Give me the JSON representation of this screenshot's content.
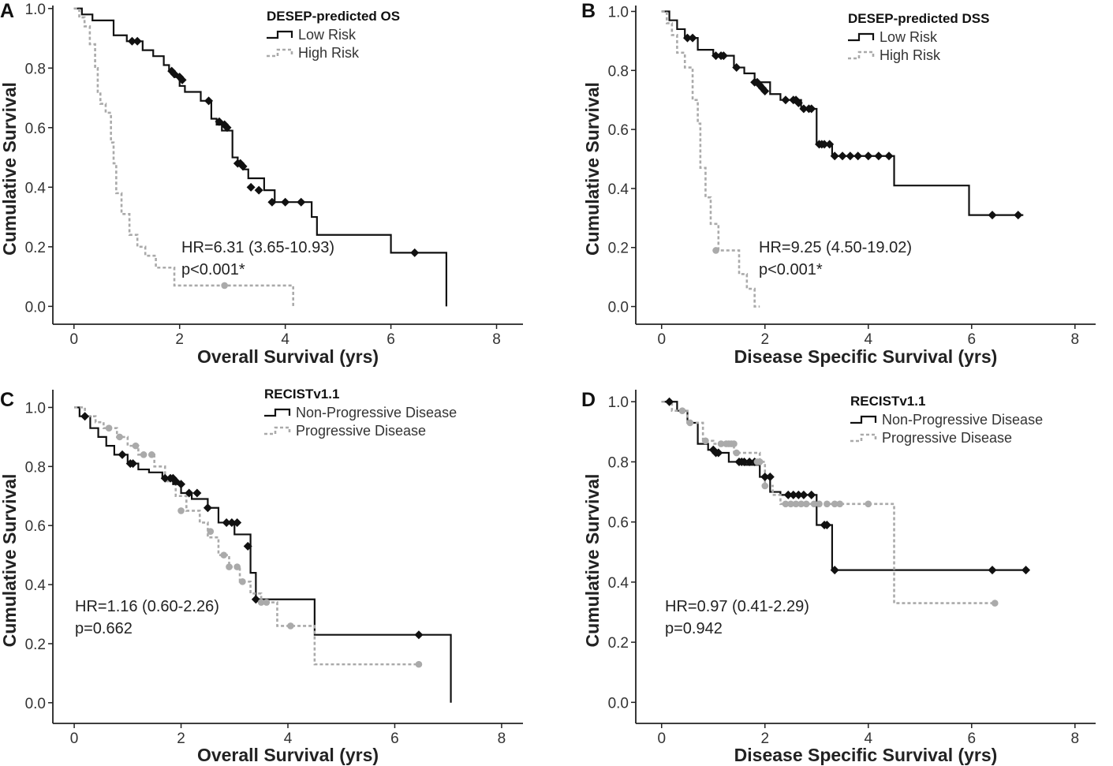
{
  "figure": {
    "colors": {
      "low": "#111111",
      "high": "#aaaaaa"
    }
  },
  "chart_data": [
    {
      "type": "line",
      "label": "A",
      "title": "DESEP-predicted OS",
      "xlabel": "Overall Survival (yrs)",
      "ylabel": "Cumulative Survival",
      "xlim": [
        -0.4,
        8.5
      ],
      "ylim": [
        -0.06,
        1.01
      ],
      "xticks": [
        0,
        2,
        4,
        6,
        8
      ],
      "yticks": [
        0.0,
        0.2,
        0.4,
        0.6,
        0.8,
        1.0
      ],
      "grid": false,
      "legend_position": "top-center",
      "annotation": [
        "HR=6.31 (3.65-10.93)",
        "p<0.001*"
      ],
      "series": [
        {
          "name": "Low Risk",
          "style": "solid",
          "color": "#111111",
          "x": [
            0.0,
            0.15,
            0.35,
            0.75,
            1.0,
            1.3,
            1.5,
            1.7,
            1.8,
            1.9,
            2.0,
            2.1,
            2.4,
            2.6,
            2.7,
            2.8,
            3.0,
            3.1,
            3.2,
            3.3,
            3.6,
            3.8,
            4.5,
            4.6,
            6.0,
            7.05
          ],
          "y": [
            1.0,
            0.98,
            0.96,
            0.91,
            0.89,
            0.86,
            0.84,
            0.81,
            0.79,
            0.77,
            0.74,
            0.72,
            0.69,
            0.63,
            0.61,
            0.59,
            0.5,
            0.48,
            0.46,
            0.43,
            0.39,
            0.35,
            0.3,
            0.24,
            0.18,
            0.0
          ],
          "censored_x": [
            1.1,
            1.2,
            1.85,
            1.9,
            2.0,
            2.05,
            2.55,
            2.75,
            2.85,
            2.9,
            3.1,
            3.15,
            3.2,
            3.35,
            3.5,
            3.75,
            4.0,
            4.3,
            6.45
          ],
          "censored_y": [
            0.89,
            0.89,
            0.79,
            0.78,
            0.77,
            0.76,
            0.69,
            0.62,
            0.61,
            0.6,
            0.48,
            0.48,
            0.47,
            0.4,
            0.39,
            0.35,
            0.35,
            0.35,
            0.18
          ]
        },
        {
          "name": "High Risk",
          "style": "dashed",
          "color": "#aaaaaa",
          "x": [
            0.0,
            0.1,
            0.2,
            0.3,
            0.4,
            0.45,
            0.5,
            0.6,
            0.7,
            0.75,
            0.8,
            0.9,
            1.05,
            1.2,
            1.35,
            1.55,
            1.9,
            4.15
          ],
          "y": [
            1.0,
            0.97,
            0.94,
            0.88,
            0.8,
            0.72,
            0.68,
            0.65,
            0.55,
            0.48,
            0.38,
            0.31,
            0.24,
            0.2,
            0.17,
            0.13,
            0.07,
            0.0
          ],
          "censored_x": [
            2.85
          ],
          "censored_y": [
            0.07
          ]
        }
      ]
    },
    {
      "type": "line",
      "label": "B",
      "title": "DESEP-predicted DSS",
      "xlabel": "Disease Specific Survival (yrs)",
      "ylabel": "Cumulative Survival",
      "xlim": [
        -0.5,
        8.4
      ],
      "ylim": [
        -0.06,
        1.02
      ],
      "xticks": [
        0,
        2,
        4,
        6,
        8
      ],
      "yticks": [
        0.0,
        0.2,
        0.4,
        0.6,
        0.8,
        1.0
      ],
      "grid": false,
      "legend_position": "top-right",
      "annotation": [
        "HR=9.25 (4.50-19.02)",
        "p<0.001*"
      ],
      "series": [
        {
          "name": "Low Risk",
          "style": "solid",
          "color": "#111111",
          "x": [
            0.0,
            0.15,
            0.3,
            0.45,
            0.7,
            1.0,
            1.4,
            1.6,
            1.8,
            2.1,
            2.3,
            2.7,
            3.0,
            3.3,
            4.5,
            5.95,
            7.0
          ],
          "y": [
            1.0,
            0.97,
            0.94,
            0.91,
            0.87,
            0.85,
            0.81,
            0.79,
            0.76,
            0.72,
            0.7,
            0.67,
            0.55,
            0.51,
            0.41,
            0.31,
            0.31
          ],
          "censored_x": [
            0.5,
            0.6,
            1.05,
            1.15,
            1.2,
            1.45,
            1.8,
            1.85,
            1.9,
            1.95,
            2.0,
            2.4,
            2.55,
            2.6,
            2.65,
            2.75,
            2.85,
            2.9,
            3.05,
            3.1,
            3.15,
            3.25,
            3.35,
            3.5,
            3.65,
            3.8,
            4.0,
            4.2,
            4.4,
            6.4,
            6.9
          ],
          "censored_y": [
            0.91,
            0.91,
            0.85,
            0.85,
            0.85,
            0.81,
            0.76,
            0.76,
            0.75,
            0.74,
            0.73,
            0.7,
            0.7,
            0.7,
            0.69,
            0.67,
            0.67,
            0.67,
            0.55,
            0.55,
            0.55,
            0.55,
            0.51,
            0.51,
            0.51,
            0.51,
            0.51,
            0.51,
            0.51,
            0.31,
            0.31
          ]
        },
        {
          "name": "High Risk",
          "style": "dashed",
          "color": "#aaaaaa",
          "x": [
            0.0,
            0.1,
            0.2,
            0.3,
            0.45,
            0.6,
            0.7,
            0.75,
            0.85,
            0.95,
            1.1,
            1.5,
            1.65,
            1.8,
            1.9
          ],
          "y": [
            1.0,
            0.96,
            0.92,
            0.86,
            0.81,
            0.7,
            0.62,
            0.47,
            0.37,
            0.28,
            0.19,
            0.11,
            0.06,
            0.0,
            0.0
          ],
          "censored_x": [
            1.05
          ],
          "censored_y": [
            0.19
          ]
        }
      ]
    },
    {
      "type": "line",
      "label": "C",
      "title": "RECISTv1.1",
      "xlabel": "Overall Survival (yrs)",
      "ylabel": "Cumulative Survival",
      "xlim": [
        -0.4,
        8.4
      ],
      "ylim": [
        -0.07,
        1.06
      ],
      "xticks": [
        0,
        2,
        4,
        6,
        8
      ],
      "yticks": [
        0.0,
        0.2,
        0.4,
        0.6,
        0.8,
        1.0
      ],
      "grid": false,
      "legend_position": "top-center",
      "annotation": [
        "HR=1.16 (0.60-2.26)",
        "p=0.662"
      ],
      "series": [
        {
          "name": "Non-Progressive Disease",
          "style": "solid",
          "color": "#111111",
          "x": [
            0.0,
            0.1,
            0.3,
            0.45,
            0.6,
            0.75,
            1.0,
            1.2,
            1.4,
            1.65,
            1.85,
            2.0,
            2.2,
            2.5,
            2.7,
            3.0,
            3.3,
            3.4,
            4.5,
            7.05
          ],
          "y": [
            1.0,
            0.97,
            0.93,
            0.9,
            0.87,
            0.84,
            0.81,
            0.79,
            0.78,
            0.76,
            0.74,
            0.71,
            0.69,
            0.66,
            0.61,
            0.57,
            0.44,
            0.35,
            0.23,
            0.0
          ],
          "censored_x": [
            0.2,
            0.9,
            1.05,
            1.1,
            1.7,
            1.8,
            1.85,
            1.9,
            2.0,
            2.15,
            2.3,
            2.5,
            2.85,
            2.95,
            3.05,
            3.25,
            3.4,
            6.45
          ],
          "censored_y": [
            0.97,
            0.84,
            0.81,
            0.81,
            0.76,
            0.76,
            0.76,
            0.75,
            0.74,
            0.71,
            0.71,
            0.66,
            0.61,
            0.61,
            0.61,
            0.53,
            0.35,
            0.23
          ]
        },
        {
          "name": "Progressive Disease",
          "style": "dashed",
          "color": "#aaaaaa",
          "x": [
            0.0,
            0.2,
            0.4,
            0.55,
            0.8,
            1.0,
            1.2,
            1.5,
            1.7,
            1.9,
            2.1,
            2.35,
            2.5,
            2.7,
            2.9,
            3.1,
            3.3,
            3.5,
            3.8,
            4.5,
            6.5
          ],
          "y": [
            1.0,
            0.97,
            0.95,
            0.93,
            0.9,
            0.87,
            0.84,
            0.8,
            0.75,
            0.7,
            0.65,
            0.61,
            0.56,
            0.5,
            0.46,
            0.41,
            0.37,
            0.34,
            0.26,
            0.13,
            0.13
          ],
          "censored_x": [
            0.65,
            0.85,
            1.15,
            1.3,
            1.45,
            2.0,
            2.55,
            2.8,
            2.9,
            3.05,
            3.15,
            3.5,
            3.6,
            4.05,
            6.45
          ],
          "censored_y": [
            0.93,
            0.9,
            0.87,
            0.84,
            0.84,
            0.65,
            0.58,
            0.5,
            0.46,
            0.46,
            0.41,
            0.34,
            0.34,
            0.26,
            0.13
          ]
        }
      ]
    },
    {
      "type": "line",
      "label": "D",
      "title": "RECISTv1.1",
      "xlabel": "Disease Specific Survival (yrs)",
      "ylabel": "Cumulative Survival",
      "xlim": [
        -0.5,
        8.4
      ],
      "ylim": [
        -0.07,
        1.04
      ],
      "xticks": [
        0,
        2,
        4,
        6,
        8
      ],
      "yticks": [
        0.0,
        0.2,
        0.4,
        0.6,
        0.8,
        1.0
      ],
      "grid": false,
      "legend_position": "top-right",
      "annotation": [
        "HR=0.97 (0.41-2.29)",
        "p=0.942"
      ],
      "series": [
        {
          "name": "Non-Progressive Disease",
          "style": "solid",
          "color": "#111111",
          "x": [
            0.0,
            0.3,
            0.5,
            0.7,
            0.9,
            1.0,
            1.3,
            1.6,
            1.9,
            2.1,
            2.3,
            3.0,
            3.15,
            3.3,
            7.05
          ],
          "y": [
            1.0,
            0.97,
            0.93,
            0.86,
            0.84,
            0.83,
            0.8,
            0.79,
            0.75,
            0.7,
            0.69,
            0.59,
            0.59,
            0.44,
            0.44
          ],
          "censored_x": [
            0.15,
            1.0,
            1.05,
            1.1,
            1.5,
            1.55,
            1.6,
            1.7,
            1.8,
            2.0,
            2.1,
            2.45,
            2.55,
            2.65,
            2.75,
            2.9,
            3.15,
            3.2,
            3.35,
            6.4,
            7.05
          ],
          "censored_y": [
            1.0,
            0.84,
            0.83,
            0.83,
            0.8,
            0.8,
            0.8,
            0.8,
            0.8,
            0.75,
            0.75,
            0.69,
            0.69,
            0.69,
            0.69,
            0.69,
            0.59,
            0.59,
            0.44,
            0.44,
            0.44
          ]
        },
        {
          "name": "Progressive Disease",
          "style": "dashed",
          "color": "#aaaaaa",
          "x": [
            0.0,
            0.2,
            0.5,
            0.8,
            1.0,
            1.4,
            1.9,
            2.0,
            2.15,
            2.3,
            2.6,
            4.5,
            6.5
          ],
          "y": [
            1.0,
            0.97,
            0.93,
            0.87,
            0.86,
            0.83,
            0.8,
            0.72,
            0.69,
            0.66,
            0.66,
            0.33,
            0.33
          ],
          "censored_x": [
            0.4,
            0.55,
            0.85,
            1.15,
            1.25,
            1.3,
            1.35,
            1.4,
            1.45,
            1.85,
            1.9,
            2.0,
            2.4,
            2.5,
            2.6,
            2.7,
            2.8,
            2.95,
            3.05,
            3.2,
            3.35,
            3.45,
            4.0,
            6.45
          ],
          "censored_y": [
            0.97,
            0.93,
            0.87,
            0.86,
            0.86,
            0.86,
            0.86,
            0.86,
            0.83,
            0.8,
            0.8,
            0.72,
            0.66,
            0.66,
            0.66,
            0.66,
            0.66,
            0.66,
            0.66,
            0.66,
            0.66,
            0.66,
            0.66,
            0.33
          ]
        }
      ]
    }
  ]
}
